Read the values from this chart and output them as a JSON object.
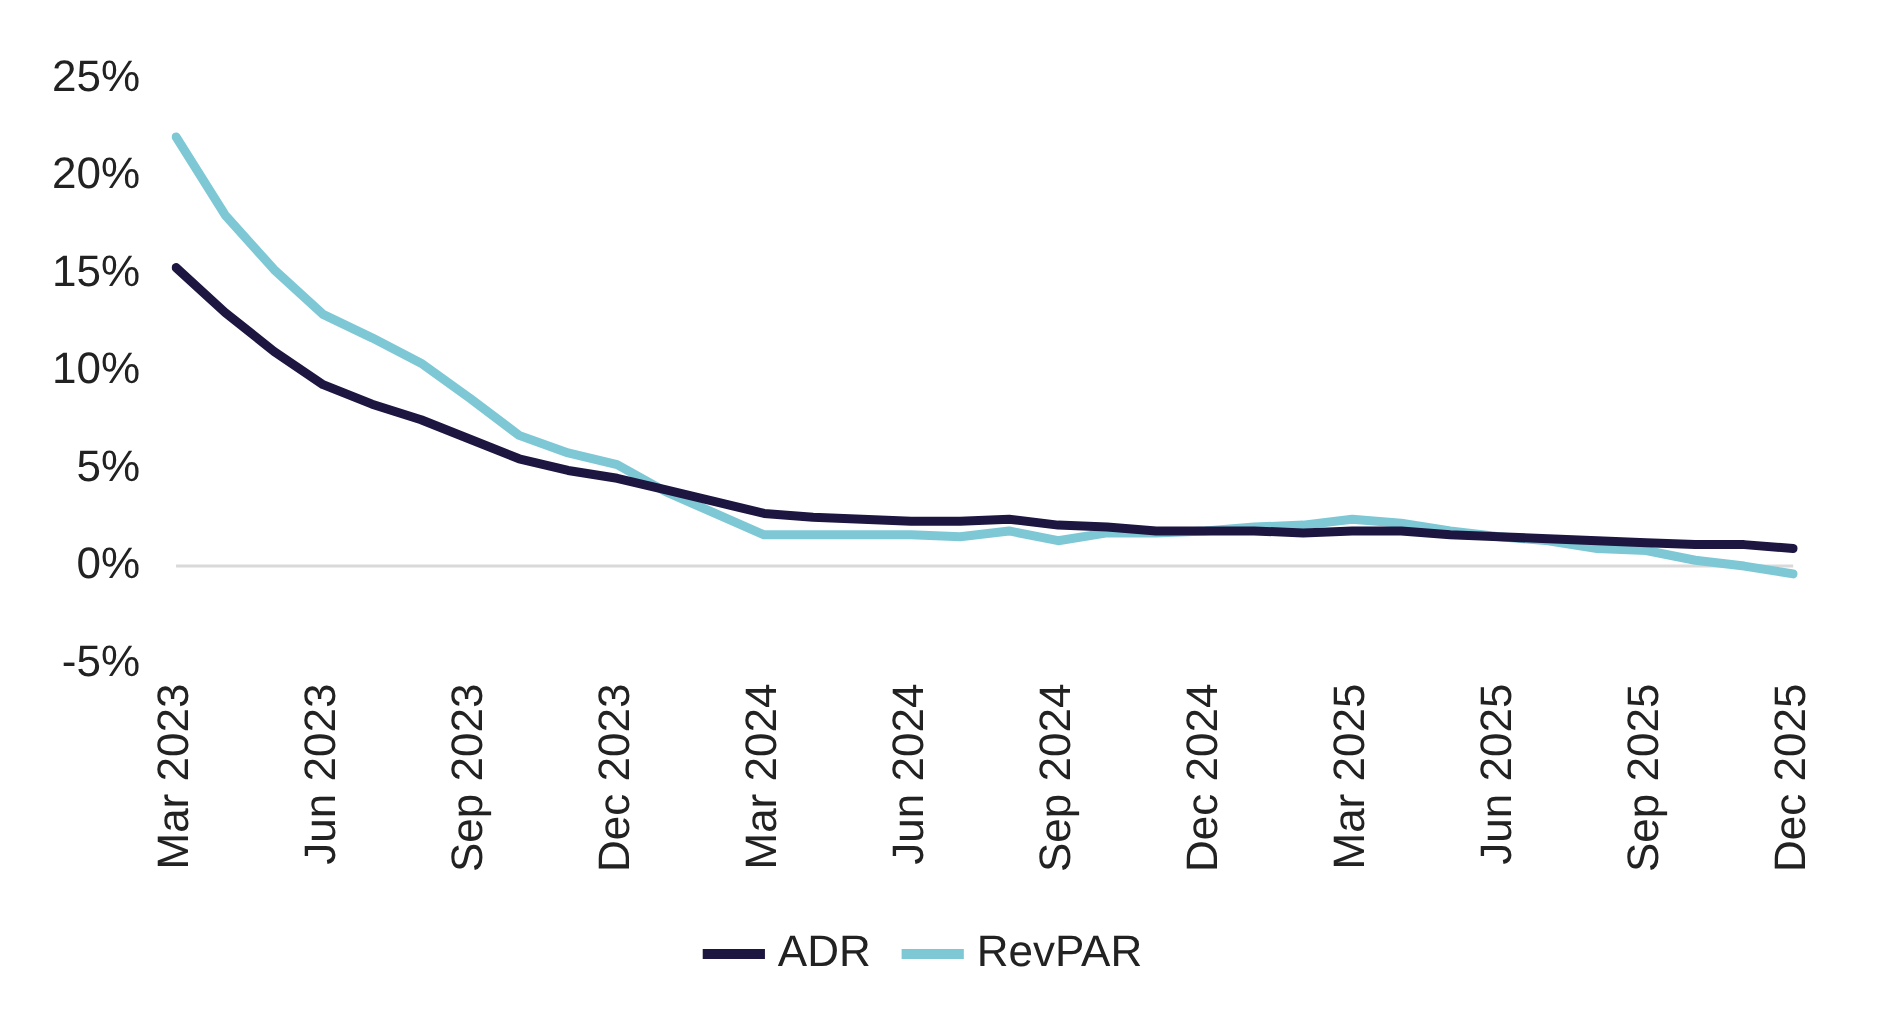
{
  "chart_data": {
    "type": "line",
    "categories": [
      "Mar 2023",
      null,
      null,
      "Jun 2023",
      null,
      null,
      "Sep 2023",
      null,
      null,
      "Dec 2023",
      null,
      null,
      "Mar 2024",
      null,
      null,
      "Jun 2024",
      null,
      null,
      "Sep 2024",
      null,
      null,
      "Dec 2024",
      null,
      null,
      "Mar 2025",
      null,
      null,
      "Jun 2025",
      null,
      null,
      "Sep 2025",
      null,
      null,
      "Dec 2025"
    ],
    "series": [
      {
        "name": "ADR",
        "color": "#1c1640",
        "values": [
          15.3,
          13,
          11,
          9.3,
          8.3,
          7.5,
          6.5,
          5.5,
          4.9,
          4.5,
          3.9,
          3.3,
          2.7,
          2.5,
          2.4,
          2.3,
          2.3,
          2.4,
          2.1,
          2.0,
          1.8,
          1.8,
          1.8,
          1.7,
          1.8,
          1.8,
          1.6,
          1.5,
          1.4,
          1.3,
          1.2,
          1.1,
          1.1,
          0.9
        ]
      },
      {
        "name": "RevPAR",
        "color": "#7ec8d6",
        "values": [
          22,
          18,
          15.2,
          12.9,
          11.7,
          10.4,
          8.6,
          6.7,
          5.8,
          5.2,
          3.8,
          2.7,
          1.6,
          1.6,
          1.6,
          1.6,
          1.5,
          1.8,
          1.3,
          1.7,
          1.7,
          1.8,
          2.0,
          2.1,
          2.4,
          2.2,
          1.8,
          1.5,
          1.3,
          0.9,
          0.8,
          0.3,
          0.0,
          -0.4
        ]
      }
    ],
    "ylim": [
      -5,
      25
    ],
    "yticks": [
      {
        "value": -5,
        "label": "-5%"
      },
      {
        "value": 0,
        "label": "0%"
      },
      {
        "value": 5,
        "label": "5%"
      },
      {
        "value": 10,
        "label": "10%"
      },
      {
        "value": 15,
        "label": "15%"
      },
      {
        "value": 20,
        "label": "20%"
      },
      {
        "value": 25,
        "label": "25%"
      }
    ],
    "ref_lines": [
      {
        "axis": "y",
        "value": 0,
        "color": "#d9d9d9"
      }
    ],
    "grid": false,
    "legend": "bottom",
    "marker": "none",
    "line_style": "solid"
  }
}
